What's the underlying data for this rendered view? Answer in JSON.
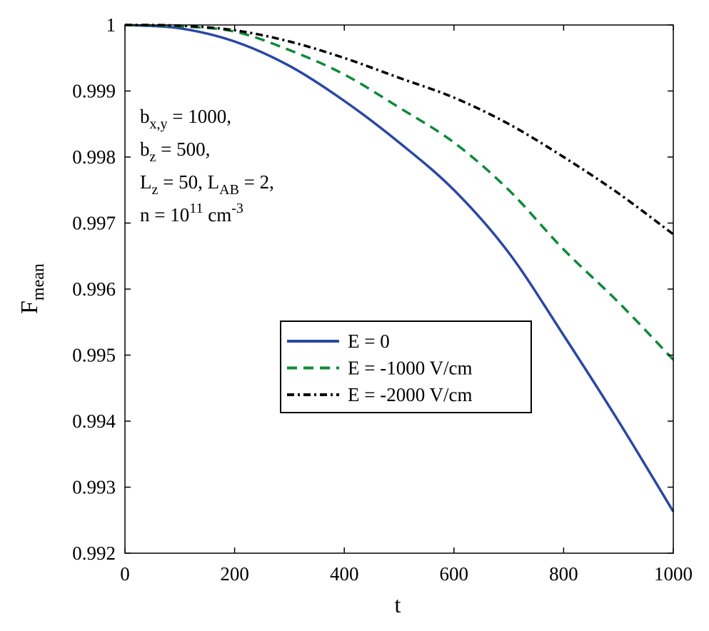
{
  "chart_data": {
    "type": "line",
    "title": "",
    "xlabel": "t",
    "ylabel": {
      "main": "F",
      "sub": "mean"
    },
    "xlim": [
      0,
      1000
    ],
    "ylim": [
      0.992,
      1
    ],
    "xticks": [
      0,
      200,
      400,
      600,
      800,
      1000
    ],
    "xtick_labels": [
      "0",
      "200",
      "400",
      "600",
      "800",
      "1000"
    ],
    "yticks": [
      0.992,
      0.993,
      0.994,
      0.995,
      0.996,
      0.997,
      0.998,
      0.999,
      1
    ],
    "ytick_labels": [
      "0.992",
      "0.993",
      "0.994",
      "0.995",
      "0.996",
      "0.997",
      "0.998",
      "0.999",
      "1"
    ],
    "grid": false,
    "legend_position": "center-right",
    "x": [
      0,
      100,
      200,
      300,
      400,
      500,
      600,
      700,
      800,
      900,
      1000
    ],
    "series": [
      {
        "name": "E = 0",
        "color": "#2a47a4",
        "style": "solid",
        "values": [
          1,
          0.99995,
          0.99975,
          0.99938,
          0.99885,
          0.99822,
          0.9975,
          0.99655,
          0.9953,
          0.994,
          0.99263
        ]
      },
      {
        "name": "E = -1000 V/cm",
        "color": "#0e8a3a",
        "style": "dashed",
        "values": [
          1,
          0.99998,
          0.9999,
          0.99962,
          0.99925,
          0.99875,
          0.99822,
          0.9975,
          0.9966,
          0.9958,
          0.99493
        ]
      },
      {
        "name": "E = -2000 V/cm",
        "color": "#000000",
        "style": "dashdot",
        "values": [
          1,
          0.99999,
          0.99992,
          0.99975,
          0.9995,
          0.9992,
          0.9989,
          0.9985,
          0.998,
          0.99745,
          0.99683
        ]
      }
    ],
    "annotation": [
      [
        {
          "t": "b"
        },
        {
          "t": "x,y",
          "k": "sub"
        },
        {
          "t": " = 1000,"
        }
      ],
      [
        {
          "t": "b"
        },
        {
          "t": "z",
          "k": "sub"
        },
        {
          "t": " = 500,"
        }
      ],
      [
        {
          "t": "L"
        },
        {
          "t": "z",
          "k": "sub"
        },
        {
          "t": " = 50, L"
        },
        {
          "t": "AB",
          "k": "sub"
        },
        {
          "t": " = 2,"
        }
      ],
      [
        {
          "t": "n = 10"
        },
        {
          "t": "11",
          "k": "sup"
        },
        {
          "t": " cm"
        },
        {
          "t": "-3",
          "k": "sup"
        }
      ]
    ]
  }
}
